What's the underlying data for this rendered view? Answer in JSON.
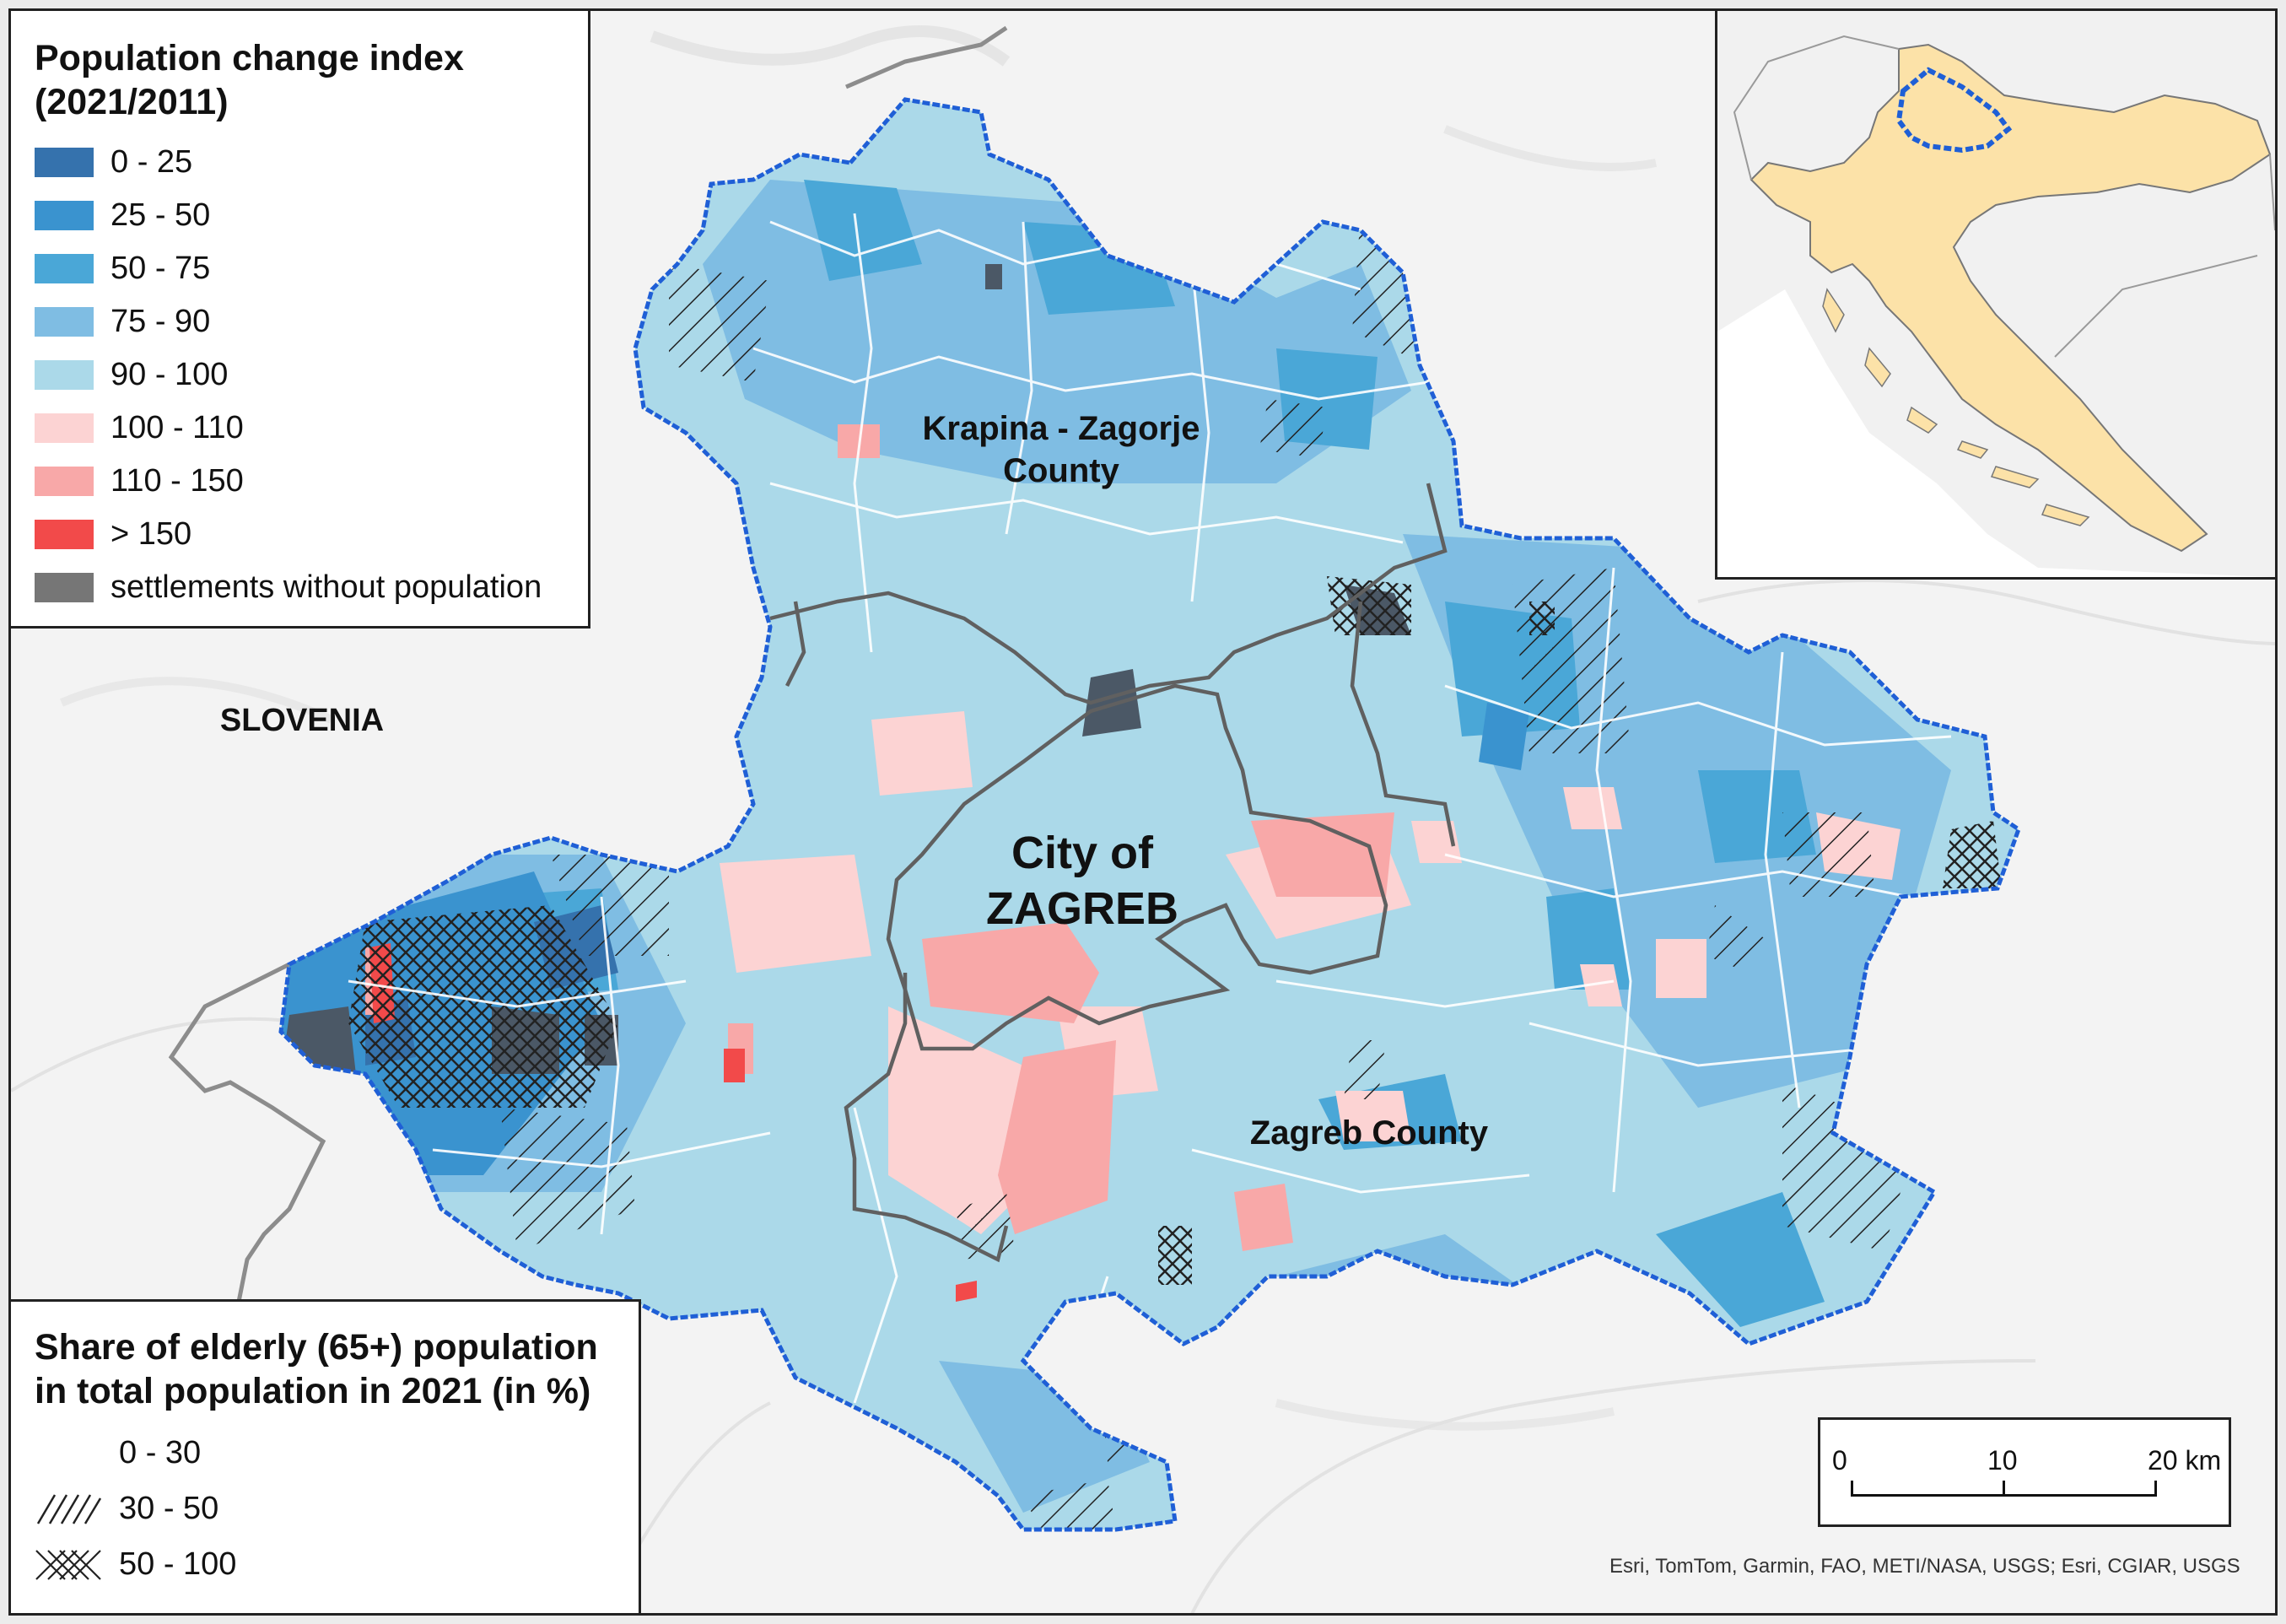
{
  "legend_change": {
    "title_line1": "Population change index",
    "title_line2": "(2021/2011)",
    "items": [
      {
        "label": "0 - 25",
        "color": "#3572ad"
      },
      {
        "label": "25 - 50",
        "color": "#3a93cf"
      },
      {
        "label": "50 - 75",
        "color": "#4aa7d7"
      },
      {
        "label": "75 - 90",
        "color": "#7fbde3"
      },
      {
        "label": "90 - 100",
        "color": "#abd9e9"
      },
      {
        "label": "100 - 110",
        "color": "#fcd3d3"
      },
      {
        "label": "110 - 150",
        "color": "#f8a8a8"
      },
      {
        "label": "> 150",
        "color": "#f24a4a"
      },
      {
        "label": "settlements without population",
        "color": "#767676"
      }
    ]
  },
  "legend_elderly": {
    "title_line1": "Share of elderly (65+) population",
    "title_line2": "in total population in 2021 (in %)",
    "items": [
      {
        "label": "0 - 30",
        "pattern": "none"
      },
      {
        "label": "30 - 50",
        "pattern": "diagonal-hatch"
      },
      {
        "label": "50 - 100",
        "pattern": "cross-hatch"
      }
    ]
  },
  "labels": {
    "krapina_line1": "Krapina - Zagorje",
    "krapina_line2": "County",
    "city_line1": "City of",
    "city_line2": "ZAGREB",
    "zagreb_county": "Zagreb County",
    "slovenia": "SLOVENIA"
  },
  "scalebar": {
    "tick_0": "0",
    "tick_1": "10",
    "tick_2": "20 km"
  },
  "attribution": "Esri, TomTom, Garmin, FAO, METI/NASA, USGS; Esri, CGIAR, USGS",
  "colors": {
    "region_outline": "#1f5fd6",
    "inset_country_fill": "#fce2a8",
    "basemap": "#f3f3f3"
  }
}
